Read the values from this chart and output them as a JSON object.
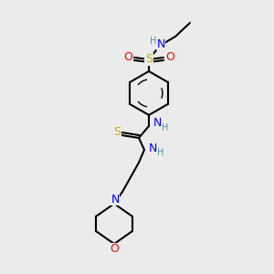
{
  "background_color": "#ebebeb",
  "atom_colors": {
    "C": "#000000",
    "H": "#4a9999",
    "N": "#0000ff",
    "O": "#ff0000",
    "S": "#ccaa00"
  },
  "bond_color": "#000000",
  "figsize": [
    3.0,
    3.0
  ],
  "dpi": 100
}
